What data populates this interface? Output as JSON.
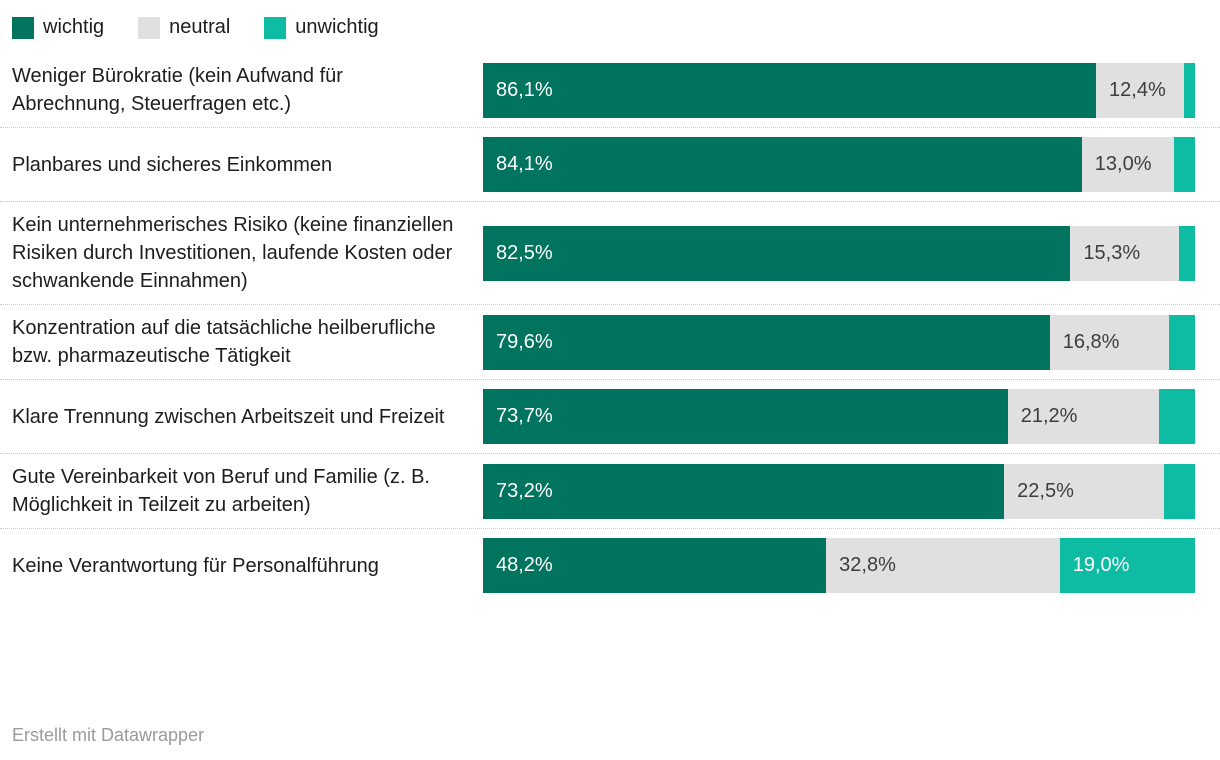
{
  "legend": {
    "items": [
      {
        "name": "wichtig",
        "label": "wichtig",
        "color": "#00745e",
        "text_color": "#ffffff"
      },
      {
        "name": "neutral",
        "label": "neutral",
        "color": "#e0e0e0",
        "text_color": "#3d3d3d"
      },
      {
        "name": "unwichtig",
        "label": "unwichtig",
        "color": "#0dbca2",
        "text_color": "#ffffff"
      }
    ]
  },
  "chart_data": {
    "type": "bar",
    "orientation": "horizontal",
    "stacked": true,
    "unit": "%",
    "xlim": [
      0,
      100
    ],
    "legend_position": "top",
    "categories": [
      "Weniger Bürokratie (kein Aufwand für Abrechnung, Steuerfragen etc.)",
      "Planbares und sicheres Einkommen",
      "Kein unternehmerisches Risiko (keine finanziellen Risiken durch Investitionen, laufende Kosten oder schwankende Einnahmen)",
      "Konzentration auf die tatsächliche heilberufliche bzw. pharmazeutische Tätigkeit",
      "Klare Trennung zwischen Arbeitszeit und Freizeit",
      "Gute Vereinbarkeit von Beruf und Familie (z. B. Möglichkeit in Teilzeit zu arbeiten)",
      "Keine Verantwortung für Personalführung"
    ],
    "series": [
      {
        "name": "wichtig",
        "values": [
          86.1,
          84.1,
          82.5,
          79.6,
          73.7,
          73.2,
          48.2
        ]
      },
      {
        "name": "neutral",
        "values": [
          12.4,
          13.0,
          15.3,
          16.8,
          21.2,
          22.5,
          32.8
        ]
      },
      {
        "name": "unwichtig",
        "values": [
          1.5,
          2.9,
          2.2,
          3.6,
          5.1,
          4.3,
          19.0
        ]
      }
    ]
  },
  "rows": [
    {
      "label": "Weniger Bürokratie (kein Aufwand für Abrechnung, Steuerfragen etc.)",
      "segments": [
        {
          "series": "wichtig",
          "pct": 86.1,
          "text": "86,1%"
        },
        {
          "series": "neutral",
          "pct": 12.4,
          "text": "12,4%"
        },
        {
          "series": "unwichtig",
          "pct": 1.5,
          "text": ""
        }
      ]
    },
    {
      "label": "Planbares und sicheres Einkommen",
      "segments": [
        {
          "series": "wichtig",
          "pct": 84.1,
          "text": "84,1%"
        },
        {
          "series": "neutral",
          "pct": 13.0,
          "text": "13,0%"
        },
        {
          "series": "unwichtig",
          "pct": 2.9,
          "text": ""
        }
      ]
    },
    {
      "label": "Kein unternehmerisches Risiko (keine finanziellen Risiken durch Investitionen, laufende Kosten oder schwankende Einnahmen)",
      "segments": [
        {
          "series": "wichtig",
          "pct": 82.5,
          "text": "82,5%"
        },
        {
          "series": "neutral",
          "pct": 15.3,
          "text": "15,3%"
        },
        {
          "series": "unwichtig",
          "pct": 2.2,
          "text": ""
        }
      ]
    },
    {
      "label": "Konzentration auf die tatsächliche heilberufliche bzw. pharmazeutische Tätigkeit",
      "segments": [
        {
          "series": "wichtig",
          "pct": 79.6,
          "text": "79,6%"
        },
        {
          "series": "neutral",
          "pct": 16.8,
          "text": "16,8%"
        },
        {
          "series": "unwichtig",
          "pct": 3.6,
          "text": ""
        }
      ]
    },
    {
      "label": "Klare Trennung zwischen Arbeitszeit und Freizeit",
      "segments": [
        {
          "series": "wichtig",
          "pct": 73.7,
          "text": "73,7%"
        },
        {
          "series": "neutral",
          "pct": 21.2,
          "text": "21,2%"
        },
        {
          "series": "unwichtig",
          "pct": 5.1,
          "text": ""
        }
      ]
    },
    {
      "label": "Gute Vereinbarkeit von Beruf und Familie (z. B. Möglichkeit in Teilzeit zu arbeiten)",
      "segments": [
        {
          "series": "wichtig",
          "pct": 73.2,
          "text": "73,2%"
        },
        {
          "series": "neutral",
          "pct": 22.5,
          "text": "22,5%"
        },
        {
          "series": "unwichtig",
          "pct": 4.3,
          "text": ""
        }
      ]
    },
    {
      "label": "Keine Verantwortung für Personalführung",
      "segments": [
        {
          "series": "wichtig",
          "pct": 48.2,
          "text": "48,2%"
        },
        {
          "series": "neutral",
          "pct": 32.8,
          "text": "32,8%"
        },
        {
          "series": "unwichtig",
          "pct": 19.0,
          "text": "19,0%"
        }
      ]
    }
  ],
  "footer": {
    "text": "Erstellt mit Datawrapper"
  }
}
